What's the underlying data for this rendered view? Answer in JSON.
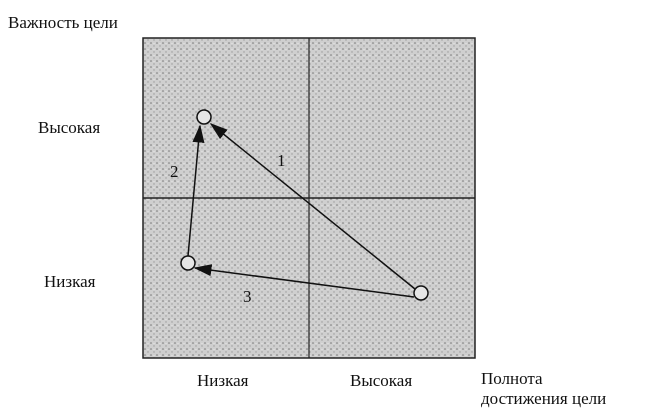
{
  "axis_title_y": "Важность цели",
  "y_labels": {
    "high": "Высокая",
    "low": "Низкая"
  },
  "x_labels": {
    "low": "Низкая",
    "high": "Высокая"
  },
  "axis_title_x": [
    "Полнота",
    "достижения цели"
  ],
  "arrows": [
    {
      "label": "1"
    },
    {
      "label": "2"
    },
    {
      "label": "3"
    }
  ]
}
